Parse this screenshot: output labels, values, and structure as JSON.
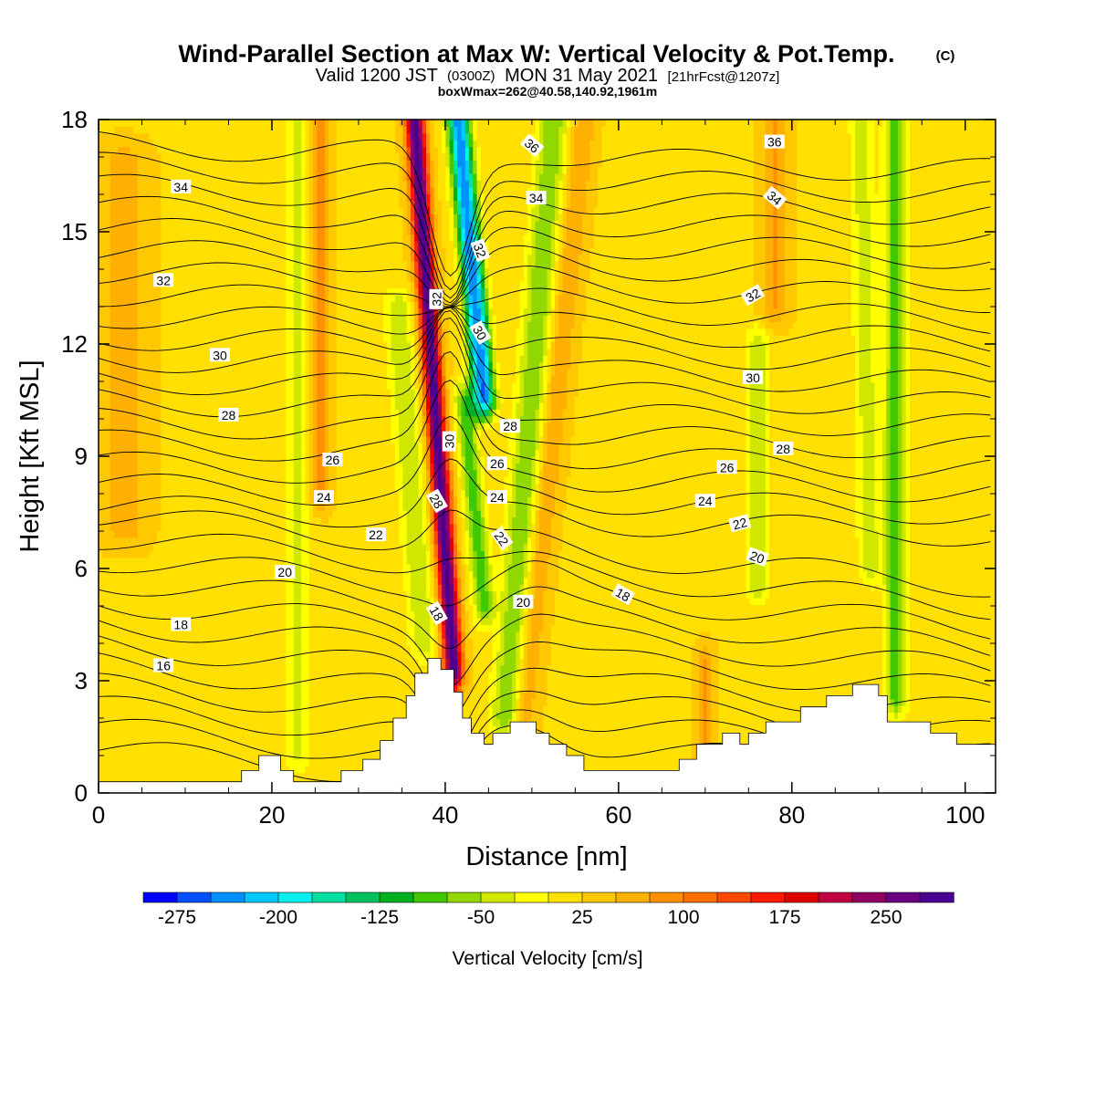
{
  "title": {
    "main": "Wind-Parallel Section at Max W: Vertical Velocity & Pot.Temp.",
    "copyright": "(C)",
    "valid_prefix": "Valid 1200 JST",
    "valid_utc": "(0300Z)",
    "valid_date": "MON 31 May 2021",
    "forecast": "[21hrFcst@1207z]",
    "boxwmax": "boxWmax=262@40.58,140.92,1961m"
  },
  "colors": {
    "terrain": "#ffffff",
    "contour": "#000000",
    "background": "#ffffff"
  },
  "chart_data": {
    "type": "heatmap",
    "xlabel": "Distance [nm]",
    "ylabel": "Height [Kft MSL]",
    "xlim": [
      0,
      103.5
    ],
    "ylim": [
      0,
      18
    ],
    "x_ticks": [
      "0",
      "20",
      "40",
      "60",
      "80",
      "100"
    ],
    "y_ticks": [
      "0",
      "3",
      "6",
      "9",
      "12",
      "15",
      "18"
    ],
    "x_tick_values": [
      0,
      20,
      40,
      60,
      80,
      100
    ],
    "y_tick_values": [
      0,
      3,
      6,
      9,
      12,
      15,
      18
    ],
    "grid": false,
    "colorbar": {
      "title": "Vertical Velocity [cm/s]",
      "labels": [
        "-275",
        "-200",
        "-125",
        "-50",
        "25",
        "100",
        "175",
        "250"
      ],
      "colors": [
        "#0000ff",
        "#0050ff",
        "#0090ff",
        "#00c8ff",
        "#00f0f0",
        "#00e0a0",
        "#00c060",
        "#00b020",
        "#40c800",
        "#90d800",
        "#d0e800",
        "#ffff00",
        "#ffe000",
        "#ffc800",
        "#ffb000",
        "#ff9000",
        "#ff7000",
        "#ff4800",
        "#ff1800",
        "#e00000",
        "#c00040",
        "#900060",
        "#6a0080",
        "#4a0090"
      ],
      "min": -300,
      "max": 275,
      "step": 25
    },
    "theta_contour_labels": [
      {
        "value": "34",
        "x": 9.5,
        "y": 16.2,
        "rot": 0
      },
      {
        "value": "32",
        "x": 7.5,
        "y": 13.7,
        "rot": 0
      },
      {
        "value": "30",
        "x": 14,
        "y": 11.7,
        "rot": 0
      },
      {
        "value": "28",
        "x": 15,
        "y": 10.1,
        "rot": 0
      },
      {
        "value": "26",
        "x": 27,
        "y": 8.9,
        "rot": 0
      },
      {
        "value": "24",
        "x": 26,
        "y": 7.9,
        "rot": 0
      },
      {
        "value": "22",
        "x": 32,
        "y": 6.9,
        "rot": 0
      },
      {
        "value": "20",
        "x": 21.5,
        "y": 5.9,
        "rot": 0
      },
      {
        "value": "18",
        "x": 9.5,
        "y": 4.5,
        "rot": 0
      },
      {
        "value": "16",
        "x": 7.5,
        "y": 3.4,
        "rot": 0
      },
      {
        "value": "36",
        "x": 50,
        "y": 17.3,
        "rot": 40
      },
      {
        "value": "34",
        "x": 50.5,
        "y": 15.9,
        "rot": 0
      },
      {
        "value": "32",
        "x": 44,
        "y": 14.5,
        "rot": 70
      },
      {
        "value": "32",
        "x": 39,
        "y": 13.2,
        "rot": -90
      },
      {
        "value": "30",
        "x": 44,
        "y": 12.3,
        "rot": 60
      },
      {
        "value": "30",
        "x": 40.5,
        "y": 9.4,
        "rot": -90
      },
      {
        "value": "28",
        "x": 47.5,
        "y": 9.8,
        "rot": 0
      },
      {
        "value": "26",
        "x": 46,
        "y": 8.8,
        "rot": 0
      },
      {
        "value": "24",
        "x": 46,
        "y": 7.9,
        "rot": 0
      },
      {
        "value": "28",
        "x": 39,
        "y": 7.8,
        "rot": 60
      },
      {
        "value": "22",
        "x": 46.5,
        "y": 6.8,
        "rot": 55
      },
      {
        "value": "20",
        "x": 49,
        "y": 5.1,
        "rot": 0
      },
      {
        "value": "18",
        "x": 39,
        "y": 4.8,
        "rot": 60
      },
      {
        "value": "18",
        "x": 60.5,
        "y": 5.3,
        "rot": 30
      },
      {
        "value": "36",
        "x": 78,
        "y": 17.4,
        "rot": 0
      },
      {
        "value": "34",
        "x": 78,
        "y": 15.9,
        "rot": 40
      },
      {
        "value": "32",
        "x": 75.5,
        "y": 13.3,
        "rot": -30
      },
      {
        "value": "30",
        "x": 75.5,
        "y": 11.1,
        "rot": 0
      },
      {
        "value": "28",
        "x": 79,
        "y": 9.2,
        "rot": 0
      },
      {
        "value": "26",
        "x": 72.5,
        "y": 8.7,
        "rot": 0
      },
      {
        "value": "24",
        "x": 70,
        "y": 7.8,
        "rot": 0
      },
      {
        "value": "22",
        "x": 74,
        "y": 7.2,
        "rot": -15
      },
      {
        "value": "20",
        "x": 76,
        "y": 6.3,
        "rot": 20
      }
    ],
    "terrain_profile": [
      [
        0,
        0.3
      ],
      [
        16.5,
        0.3
      ],
      [
        16.5,
        0.6
      ],
      [
        18.5,
        0.6
      ],
      [
        18.5,
        1.0
      ],
      [
        21,
        1.0
      ],
      [
        21,
        0.6
      ],
      [
        22.5,
        0.6
      ],
      [
        22.5,
        0.3
      ],
      [
        28,
        0.3
      ],
      [
        28,
        0.6
      ],
      [
        30.5,
        0.6
      ],
      [
        30.5,
        0.9
      ],
      [
        32.5,
        0.9
      ],
      [
        32.5,
        1.4
      ],
      [
        34,
        1.4
      ],
      [
        34,
        2.0
      ],
      [
        35.5,
        2.0
      ],
      [
        35.5,
        2.6
      ],
      [
        36.5,
        2.6
      ],
      [
        36.5,
        3.2
      ],
      [
        38,
        3.2
      ],
      [
        38,
        3.6
      ],
      [
        39.5,
        3.6
      ],
      [
        39.5,
        3.3
      ],
      [
        41,
        3.3
      ],
      [
        41,
        2.7
      ],
      [
        42,
        2.7
      ],
      [
        42,
        2.0
      ],
      [
        43,
        2.0
      ],
      [
        43,
        1.6
      ],
      [
        44.5,
        1.6
      ],
      [
        44.5,
        1.3
      ],
      [
        45.5,
        1.3
      ],
      [
        45.5,
        1.6
      ],
      [
        47.5,
        1.6
      ],
      [
        47.5,
        1.9
      ],
      [
        50.5,
        1.9
      ],
      [
        50.5,
        1.6
      ],
      [
        52,
        1.6
      ],
      [
        52,
        1.3
      ],
      [
        54,
        1.3
      ],
      [
        54,
        1.0
      ],
      [
        56,
        1.0
      ],
      [
        56,
        0.6
      ],
      [
        67,
        0.6
      ],
      [
        67,
        0.9
      ],
      [
        69,
        0.9
      ],
      [
        69,
        1.3
      ],
      [
        72,
        1.3
      ],
      [
        72,
        1.6
      ],
      [
        74,
        1.6
      ],
      [
        74,
        1.3
      ],
      [
        75,
        1.3
      ],
      [
        75,
        1.6
      ],
      [
        77,
        1.6
      ],
      [
        77,
        1.9
      ],
      [
        81,
        1.9
      ],
      [
        81,
        2.3
      ],
      [
        84,
        2.3
      ],
      [
        84,
        2.6
      ],
      [
        87,
        2.6
      ],
      [
        87,
        2.9
      ],
      [
        90,
        2.9
      ],
      [
        90,
        2.6
      ],
      [
        91,
        2.6
      ],
      [
        91,
        1.9
      ],
      [
        96,
        1.9
      ],
      [
        96,
        1.6
      ],
      [
        99,
        1.6
      ],
      [
        99,
        1.3
      ],
      [
        103.5,
        1.3
      ],
      [
        103.5,
        0
      ],
      [
        0,
        0
      ]
    ],
    "w_features": [
      {
        "x0": 41.0,
        "x1": 36.5,
        "y0": 3.2,
        "y1": 18,
        "amp": 270,
        "w": 1.1
      },
      {
        "x0": 44.5,
        "x1": 41.5,
        "y0": 10.5,
        "y1": 18,
        "amp": -270,
        "w": 1.3
      },
      {
        "x0": 44.5,
        "x1": 42.2,
        "y0": 5.0,
        "y1": 10.5,
        "amp": -110,
        "w": 1.2
      },
      {
        "x0": 37.5,
        "x1": 34.5,
        "y0": 4.0,
        "y1": 13.0,
        "amp": -70,
        "w": 1.6
      },
      {
        "x0": 47.0,
        "x1": 52.5,
        "y0": 2.0,
        "y1": 18,
        "amp": -95,
        "w": 1.8
      },
      {
        "x0": 49.0,
        "x1": 56.0,
        "y0": 2.0,
        "y1": 18,
        "amp": 55,
        "w": 1.4
      },
      {
        "x0": 23.0,
        "x1": 23.0,
        "y0": 1.0,
        "y1": 18,
        "amp": -55,
        "w": 1.5
      },
      {
        "x0": 25.5,
        "x1": 25.5,
        "y0": 8.0,
        "y1": 18,
        "amp": 60,
        "w": 1.2
      },
      {
        "x0": 92.0,
        "x1": 92.0,
        "y0": 2.5,
        "y1": 18,
        "amp": -110,
        "w": 1.3
      },
      {
        "x0": 89.0,
        "x1": 88.0,
        "y0": 6.0,
        "y1": 18,
        "amp": -60,
        "w": 1.4
      },
      {
        "x0": 76.0,
        "x1": 76.0,
        "y0": 5.5,
        "y1": 12,
        "amp": -70,
        "w": 1.4
      },
      {
        "x0": 78.0,
        "x1": 78.0,
        "y0": 13,
        "y1": 18,
        "amp": 55,
        "w": 1.5
      },
      {
        "x0": 70.0,
        "x1": 70.0,
        "y0": 1.0,
        "y1": 3.5,
        "amp": 60,
        "w": 1.0
      },
      {
        "x0": 3.0,
        "x1": 3.0,
        "y0": 7.0,
        "y1": 17,
        "amp": 40,
        "w": 2.5
      }
    ]
  }
}
